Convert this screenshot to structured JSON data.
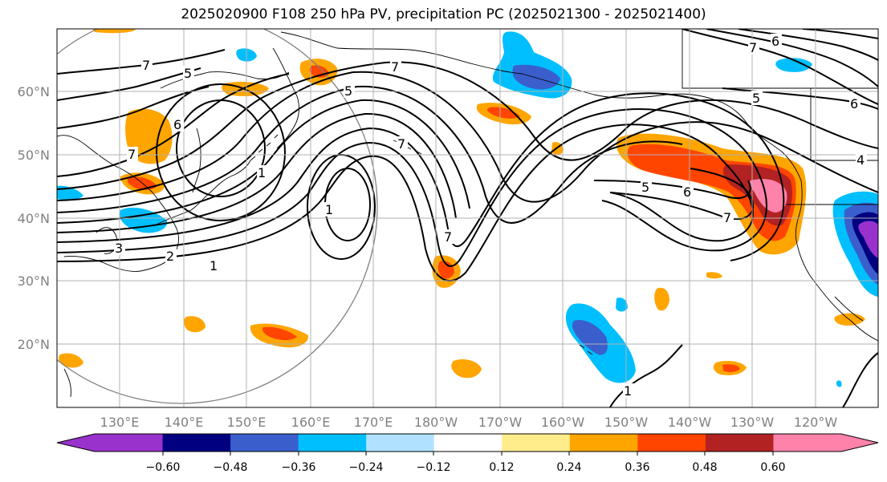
{
  "title": "2025020900 F108 250 hPa PV, precipitation PC (2025021300 - 2025021400)",
  "lat_labels": [
    "60°N",
    "50°N",
    "40°N",
    "30°N",
    "20°N"
  ],
  "lon_labels": [
    "130°E",
    "140°E",
    "150°E",
    "160°E",
    "170°E",
    "180°W",
    "170°W",
    "160°W",
    "150°W",
    "140°W",
    "130°W",
    "120°W"
  ],
  "contour_labels": [
    "7",
    "5",
    "5",
    "7",
    "6",
    "7",
    "3",
    "1",
    "1",
    "2",
    "1",
    "7",
    "7",
    "5",
    "6",
    "7",
    "6",
    "7",
    "6",
    "5",
    "4",
    "1"
  ],
  "colorbar": {
    "colors": [
      "#9932cc",
      "#000080",
      "#3a5fcd",
      "#00bfff",
      "#b0e2ff",
      "#ffffff",
      "#ffec8b",
      "#ffa500",
      "#ff4500",
      "#b22222",
      "#ff82ab"
    ],
    "tick_labels": [
      "−0.60",
      "−0.48",
      "−0.36",
      "−0.24",
      "−0.12",
      "0.12",
      "0.24",
      "0.36",
      "0.48",
      "0.60"
    ]
  }
}
